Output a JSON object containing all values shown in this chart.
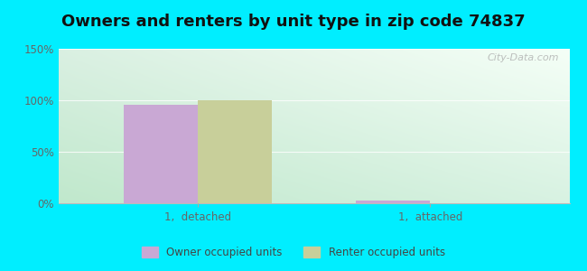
{
  "title": "Owners and renters by unit type in zip code 74837",
  "categories": [
    "1,  detached",
    "1,  attached"
  ],
  "owner_values": [
    96,
    3
  ],
  "renter_values": [
    100,
    0
  ],
  "owner_color": "#c9a8d4",
  "renter_color": "#c8cf9a",
  "owner_label": "Owner occupied units",
  "renter_label": "Renter occupied units",
  "ylim": [
    0,
    150
  ],
  "yticks": [
    0,
    50,
    100,
    150
  ],
  "ytick_labels": [
    "0%",
    "50%",
    "100%",
    "150%"
  ],
  "bar_width": 0.32,
  "background_outer": "#00eeff",
  "title_fontsize": 13,
  "watermark": "City-Data.com",
  "grad_top_color": "#e0f5e0",
  "grad_bottom_color": "#d0eedc"
}
